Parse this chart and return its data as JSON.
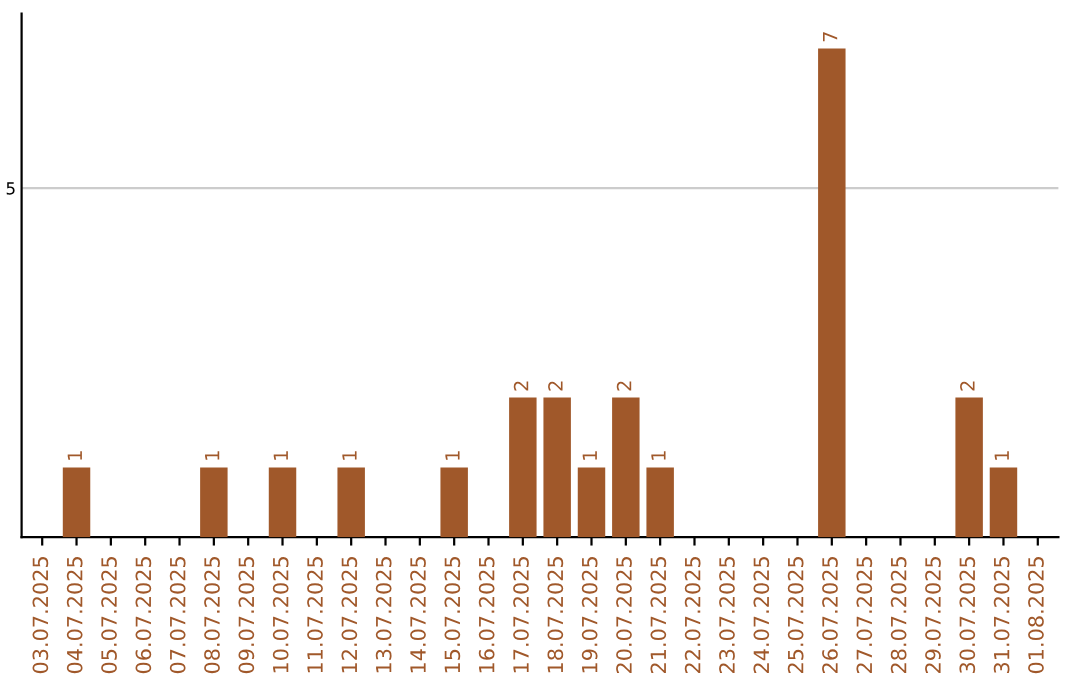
{
  "chart_data": {
    "type": "bar",
    "categories": [
      "03.07.2025",
      "04.07.2025",
      "05.07.2025",
      "06.07.2025",
      "07.07.2025",
      "08.07.2025",
      "09.07.2025",
      "10.07.2025",
      "11.07.2025",
      "12.07.2025",
      "13.07.2025",
      "14.07.2025",
      "15.07.2025",
      "16.07.2025",
      "17.07.2025",
      "18.07.2025",
      "19.07.2025",
      "20.07.2025",
      "21.07.2025",
      "22.07.2025",
      "23.07.2025",
      "24.07.2025",
      "25.07.2025",
      "26.07.2025",
      "27.07.2025",
      "28.07.2025",
      "29.07.2025",
      "30.07.2025",
      "31.07.2025",
      "01.08.2025"
    ],
    "values": [
      0,
      1,
      0,
      0,
      0,
      1,
      0,
      1,
      0,
      1,
      0,
      0,
      1,
      0,
      2,
      2,
      1,
      2,
      1,
      0,
      0,
      0,
      0,
      7,
      0,
      0,
      0,
      2,
      1,
      0
    ],
    "value_labels": [
      null,
      "1",
      null,
      null,
      null,
      "1",
      null,
      "1",
      null,
      "1",
      null,
      null,
      "1",
      null,
      "2",
      "2",
      "1",
      "2",
      "1",
      null,
      null,
      null,
      null,
      "7",
      null,
      null,
      null,
      "2",
      "1",
      null
    ],
    "color": "#a0582a",
    "ylim": [
      0,
      7.5
    ],
    "yticks": [
      5
    ],
    "grid": "y"
  }
}
